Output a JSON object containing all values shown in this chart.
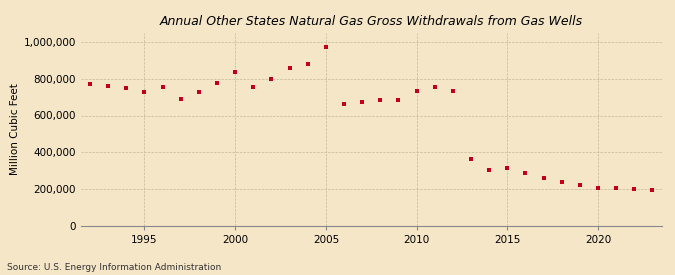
{
  "title": "Annual Other States Natural Gas Gross Withdrawals from Gas Wells",
  "ylabel": "Million Cubic Feet",
  "source": "Source: U.S. Energy Information Administration",
  "background_color": "#f5e6c8",
  "marker_color": "#c0001a",
  "years": [
    1992,
    1993,
    1994,
    1995,
    1996,
    1997,
    1998,
    1999,
    2000,
    2001,
    2002,
    2003,
    2004,
    2005,
    2006,
    2007,
    2008,
    2009,
    2010,
    2011,
    2012,
    2013,
    2014,
    2015,
    2016,
    2017,
    2018,
    2019,
    2020,
    2021,
    2022,
    2023
  ],
  "values": [
    770000,
    760000,
    750000,
    728000,
    755000,
    692000,
    730000,
    778000,
    840000,
    758000,
    800000,
    858000,
    882000,
    975000,
    665000,
    672000,
    685000,
    682000,
    732000,
    758000,
    732000,
    365000,
    305000,
    312000,
    285000,
    258000,
    237000,
    222000,
    207000,
    202000,
    197000,
    193000
  ],
  "ylim": [
    0,
    1050000
  ],
  "yticks": [
    0,
    200000,
    400000,
    600000,
    800000,
    1000000
  ],
  "xticks": [
    1995,
    2000,
    2005,
    2010,
    2015,
    2020
  ],
  "xlim": [
    1991.5,
    2023.5
  ],
  "figsize": [
    6.75,
    2.75
  ],
  "dpi": 100
}
